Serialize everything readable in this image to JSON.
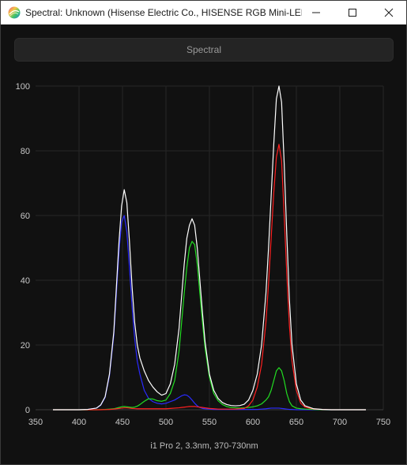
{
  "window": {
    "title": "Spectral: Unknown (Hisense Electric Co., HISENSE RGB Mini-LED...",
    "icon": "spectral-app-icon",
    "controls": [
      "minimize-icon",
      "maximize-icon",
      "close-icon"
    ]
  },
  "toolbar": {
    "spectral_label": "Spectral"
  },
  "caption": "i1 Pro 2, 3.3nm, 370-730nm",
  "chart_data": {
    "type": "line",
    "title": "",
    "xlabel": "",
    "ylabel": "",
    "xlim": [
      350,
      750
    ],
    "ylim": [
      0,
      100
    ],
    "xticks": [
      350,
      400,
      450,
      500,
      550,
      600,
      650,
      700,
      750
    ],
    "yticks": [
      0,
      20,
      40,
      60,
      80,
      100
    ],
    "grid": true,
    "legend": "none",
    "x": [
      370,
      380,
      390,
      400,
      410,
      420,
      425,
      430,
      435,
      440,
      443,
      446,
      449,
      452,
      455,
      458,
      461,
      464,
      467,
      470,
      475,
      480,
      485,
      490,
      495,
      500,
      505,
      510,
      515,
      518,
      521,
      524,
      527,
      530,
      533,
      536,
      539,
      542,
      545,
      550,
      555,
      560,
      565,
      570,
      575,
      580,
      585,
      590,
      595,
      600,
      605,
      610,
      615,
      618,
      621,
      624,
      627,
      630,
      633,
      636,
      639,
      642,
      645,
      650,
      655,
      660,
      670,
      680,
      690,
      700,
      710,
      720,
      730
    ],
    "series": [
      {
        "color": "#ffffff",
        "values": [
          0,
          0,
          0,
          0,
          0.1,
          0.5,
          1.5,
          4,
          11,
          24,
          38,
          52,
          63,
          68,
          64,
          52,
          38,
          27,
          20,
          16,
          12,
          9,
          7,
          5.5,
          4.5,
          5,
          8,
          14,
          25,
          35,
          45,
          53,
          57,
          59,
          57,
          50,
          40,
          30,
          21,
          11,
          6,
          3.5,
          2.2,
          1.6,
          1.3,
          1.2,
          1.3,
          1.7,
          3,
          6,
          11,
          20,
          36,
          50,
          66,
          82,
          96,
          100,
          95,
          76,
          54,
          34,
          20,
          8,
          3,
          1.2,
          0.3,
          0.1,
          0,
          0,
          0,
          0,
          0
        ]
      },
      {
        "color": "#ff2020",
        "values": [
          0,
          0,
          0,
          0,
          0,
          0,
          0,
          0.05,
          0.1,
          0.2,
          0.3,
          0.4,
          0.5,
          0.6,
          0.6,
          0.5,
          0.4,
          0.35,
          0.3,
          0.3,
          0.3,
          0.3,
          0.3,
          0.3,
          0.3,
          0.3,
          0.4,
          0.5,
          0.6,
          0.7,
          0.8,
          0.9,
          1,
          1,
          1,
          0.9,
          0.8,
          0.7,
          0.6,
          0.4,
          0.3,
          0.2,
          0.2,
          0.2,
          0.2,
          0.2,
          0.3,
          0.4,
          1.2,
          3,
          7,
          14,
          27,
          39,
          53,
          67,
          78,
          82,
          77,
          60,
          42,
          26,
          15,
          6,
          2,
          0.8,
          0.2,
          0.1,
          0,
          0,
          0,
          0,
          0
        ]
      },
      {
        "color": "#22dd22",
        "values": [
          0,
          0,
          0,
          0,
          0,
          0,
          0.05,
          0.1,
          0.2,
          0.3,
          0.5,
          0.7,
          0.9,
          1,
          0.9,
          0.8,
          0.7,
          0.8,
          1.1,
          1.6,
          2.6,
          3.4,
          3.3,
          2.8,
          2.6,
          3,
          5,
          9,
          18,
          27,
          36,
          44,
          50,
          52,
          51,
          45,
          36,
          27,
          19,
          10,
          5,
          2.8,
          1.6,
          1,
          0.7,
          0.6,
          0.5,
          0.6,
          0.7,
          0.9,
          1.2,
          1.8,
          3,
          4,
          6,
          9,
          12,
          13,
          12,
          9,
          5,
          2.5,
          1.2,
          0.5,
          0.3,
          0.2,
          0.1,
          0,
          0,
          0,
          0,
          0,
          0
        ]
      },
      {
        "color": "#2a2aff",
        "values": [
          0,
          0,
          0,
          0,
          0.1,
          0.5,
          1.4,
          3.8,
          10.5,
          23,
          36,
          49,
          58,
          60,
          55,
          44,
          32,
          22,
          15,
          11,
          6,
          3.5,
          2.5,
          2,
          1.8,
          2,
          2.5,
          3,
          3.8,
          4.3,
          4.6,
          4.5,
          3.9,
          3,
          2,
          1.2,
          0.7,
          0.4,
          0.3,
          0.2,
          0.1,
          0.1,
          0.1,
          0.1,
          0.1,
          0.1,
          0.1,
          0.1,
          0.1,
          0.1,
          0.1,
          0.2,
          0.3,
          0.4,
          0.5,
          0.5,
          0.5,
          0.5,
          0.4,
          0.3,
          0.2,
          0.1,
          0.1,
          0,
          0,
          0,
          0,
          0,
          0,
          0,
          0,
          0,
          0
        ]
      }
    ]
  }
}
